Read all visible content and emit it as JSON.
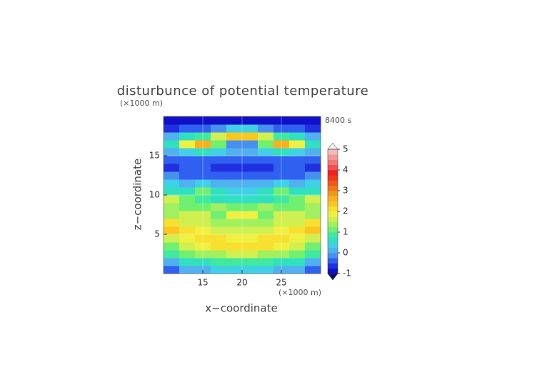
{
  "chart_data": {
    "type": "contour",
    "title": "disturbunce of potential temperature",
    "time_label": "8400 s",
    "xlabel": "x−coordinate",
    "ylabel": "z−coordinate",
    "x_unit": "(×1000 m)",
    "y_unit": "(×1000 m)",
    "xlim": [
      10,
      30
    ],
    "ylim": [
      0,
      20
    ],
    "xticks": [
      15,
      20,
      25
    ],
    "yticks": [
      5,
      10,
      15
    ],
    "grid": true,
    "x": [
      11,
      13,
      15,
      17,
      19,
      21,
      23,
      25,
      27,
      29
    ],
    "y": [
      0.5,
      1.5,
      2.5,
      3.5,
      4.5,
      5.5,
      6.5,
      7.5,
      8.5,
      9.5,
      10.5,
      11.5,
      12.5,
      13.5,
      14.5,
      15.5,
      16.5,
      17.5,
      18.5,
      19.5
    ],
    "z": [
      [
        -0.3,
        0,
        0.2,
        0.3,
        0.3,
        0.3,
        0.3,
        0.2,
        0,
        -0.3
      ],
      [
        0.2,
        0.5,
        0.7,
        0.8,
        0.8,
        0.8,
        0.8,
        0.7,
        0.5,
        0.2
      ],
      [
        0.8,
        1.0,
        1.3,
        1.4,
        1.5,
        1.5,
        1.4,
        1.3,
        1.0,
        0.8
      ],
      [
        1.2,
        1.5,
        1.9,
        2.1,
        2.2,
        2.2,
        2.1,
        1.9,
        1.5,
        1.2
      ],
      [
        1.5,
        1.8,
        2.0,
        2.0,
        1.9,
        1.9,
        2.0,
        2.0,
        1.8,
        1.5
      ],
      [
        2.3,
        2.0,
        1.8,
        1.5,
        1.6,
        1.6,
        1.5,
        1.8,
        2.0,
        2.3
      ],
      [
        2.0,
        1.7,
        1.6,
        1.3,
        1.4,
        1.4,
        1.3,
        1.6,
        1.7,
        2.0
      ],
      [
        1.4,
        1.5,
        1.6,
        1.2,
        1.8,
        1.8,
        1.2,
        1.6,
        1.5,
        1.4
      ],
      [
        1.3,
        1.2,
        1.0,
        1.3,
        1.0,
        1.0,
        1.3,
        1.0,
        1.2,
        1.3
      ],
      [
        1.7,
        1.0,
        0.8,
        0.6,
        0.5,
        0.5,
        0.6,
        0.8,
        1.0,
        1.7
      ],
      [
        0.5,
        0.6,
        1.1,
        0.5,
        0.3,
        0.3,
        0.5,
        1.1,
        0.6,
        0.5
      ],
      [
        0.4,
        0.2,
        0.3,
        0.1,
        0.0,
        0.0,
        0.1,
        0.3,
        0.2,
        0.4
      ],
      [
        -0.2,
        -0.4,
        -0.3,
        -0.3,
        -0.4,
        -0.4,
        -0.3,
        -0.3,
        -0.4,
        -0.2
      ],
      [
        -0.6,
        -0.5,
        -0.4,
        -0.6,
        -0.7,
        -0.7,
        -0.6,
        -0.4,
        -0.5,
        -0.6
      ],
      [
        -0.3,
        -0.5,
        -0.4,
        -0.5,
        -0.5,
        -0.5,
        -0.5,
        -0.4,
        -0.5,
        -0.3
      ],
      [
        0.2,
        0.4,
        0.5,
        0.3,
        0.2,
        0.2,
        0.3,
        0.5,
        0.4,
        0.2
      ],
      [
        0.5,
        1.8,
        2.6,
        1.2,
        -0.2,
        -0.2,
        1.2,
        2.6,
        1.8,
        0.5
      ],
      [
        0.2,
        0.5,
        0.8,
        1.5,
        2.4,
        2.4,
        1.5,
        0.8,
        0.5,
        0.2
      ],
      [
        -0.6,
        -0.4,
        -0.3,
        -0.2,
        0.3,
        0.3,
        -0.2,
        -0.3,
        -0.4,
        -0.6
      ],
      [
        -0.9,
        -0.9,
        -0.9,
        -0.9,
        -0.8,
        -0.8,
        -0.9,
        -0.9,
        -0.9,
        -0.9
      ]
    ],
    "clim": [
      -1,
      5
    ],
    "cticks": [
      -1,
      0,
      1,
      2,
      3,
      4,
      5
    ],
    "colors": [
      "#1010c8",
      "#2030e0",
      "#3060f0",
      "#4890f0",
      "#50b0f0",
      "#40d0e8",
      "#30e0c0",
      "#40e8a0",
      "#70f070",
      "#a0f060",
      "#d0f050",
      "#f0f040",
      "#f8e030",
      "#f8c820",
      "#f8b020",
      "#f09818",
      "#f07818",
      "#f05818",
      "#f03818",
      "#f02020",
      "#f05050",
      "#f07878",
      "#f09898",
      "#f8b8b8"
    ],
    "extend_colors": [
      "#0a0a80",
      "#f4f0f0"
    ]
  }
}
